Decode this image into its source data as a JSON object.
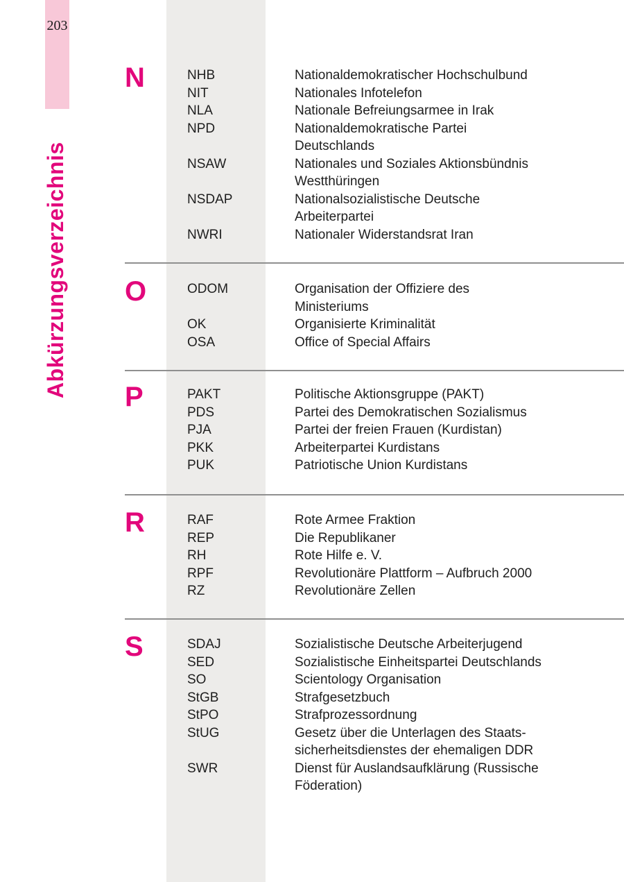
{
  "page": {
    "number": "203",
    "sidebar_title": "Abkürzungsverzeichnis"
  },
  "colors": {
    "accent": "#e2077b",
    "tab_pink": "#f8c8d8",
    "band_gray": "#edecea",
    "rule_gray": "#8f8f8f",
    "text": "#1e1e1e"
  },
  "sections": [
    {
      "letter": "N",
      "entries": [
        {
          "abbr": "NHB",
          "def_lines": [
            "Nationaldemokratischer Hochschulbund"
          ]
        },
        {
          "abbr": "NIT",
          "def_lines": [
            "Nationales Infotelefon"
          ]
        },
        {
          "abbr": "NLA",
          "def_lines": [
            "Nationale Befreiungsarmee in Irak"
          ]
        },
        {
          "abbr": "NPD",
          "def_lines": [
            "Nationaldemokratische Partei",
            "Deutschlands"
          ]
        },
        {
          "abbr": "NSAW",
          "def_lines": [
            "Nationales und Soziales Aktionsbündnis",
            "Westthüringen"
          ]
        },
        {
          "abbr": "NSDAP",
          "def_lines": [
            "Nationalsozialistische Deutsche",
            "Arbeiterpartei"
          ]
        },
        {
          "abbr": "NWRI",
          "def_lines": [
            "Nationaler Widerstandsrat Iran"
          ]
        }
      ]
    },
    {
      "letter": "O",
      "entries": [
        {
          "abbr": "ODOM",
          "def_lines": [
            "Organisation der Offiziere des",
            "Ministeriums"
          ]
        },
        {
          "abbr": "OK",
          "def_lines": [
            "Organisierte Kriminalität"
          ]
        },
        {
          "abbr": "OSA",
          "def_lines": [
            "Office of Special Affairs"
          ]
        }
      ]
    },
    {
      "letter": "P",
      "entries": [
        {
          "abbr": "PAKT",
          "def_lines": [
            "Politische Aktionsgruppe (PAKT)"
          ]
        },
        {
          "abbr": "PDS",
          "def_lines": [
            "Partei des Demokratischen Sozialismus"
          ]
        },
        {
          "abbr": "PJA",
          "def_lines": [
            "Partei der freien Frauen (Kurdistan)"
          ]
        },
        {
          "abbr": "PKK",
          "def_lines": [
            "Arbeiterpartei Kurdistans"
          ]
        },
        {
          "abbr": "PUK",
          "def_lines": [
            "Patriotische Union Kurdistans"
          ]
        }
      ]
    },
    {
      "letter": "R",
      "entries": [
        {
          "abbr": "RAF",
          "def_lines": [
            "Rote Armee Fraktion"
          ]
        },
        {
          "abbr": "REP",
          "def_lines": [
            "Die Republikaner"
          ]
        },
        {
          "abbr": "RH",
          "def_lines": [
            "Rote Hilfe e. V."
          ]
        },
        {
          "abbr": "RPF",
          "def_lines": [
            "Revolutionäre Plattform – Aufbruch 2000"
          ]
        },
        {
          "abbr": "RZ",
          "def_lines": [
            "Revolutionäre Zellen"
          ]
        }
      ]
    },
    {
      "letter": "S",
      "entries": [
        {
          "abbr": "SDAJ",
          "def_lines": [
            "Sozialistische Deutsche Arbeiterjugend"
          ]
        },
        {
          "abbr": "SED",
          "def_lines": [
            "Sozialistische Einheitspartei Deutschlands"
          ]
        },
        {
          "abbr": "SO",
          "def_lines": [
            "Scientology Organisation"
          ]
        },
        {
          "abbr": "StGB",
          "def_lines": [
            "Strafgesetzbuch"
          ]
        },
        {
          "abbr": "StPO",
          "def_lines": [
            "Strafprozessordnung"
          ]
        },
        {
          "abbr": "StUG",
          "def_lines": [
            "Gesetz über die Unterlagen des Staats-",
            "sicherheitsdienstes der ehemaligen DDR"
          ]
        },
        {
          "abbr": "SWR",
          "def_lines": [
            "Dienst für Auslandsaufklärung (Russische",
            "Föderation)"
          ]
        }
      ]
    }
  ]
}
